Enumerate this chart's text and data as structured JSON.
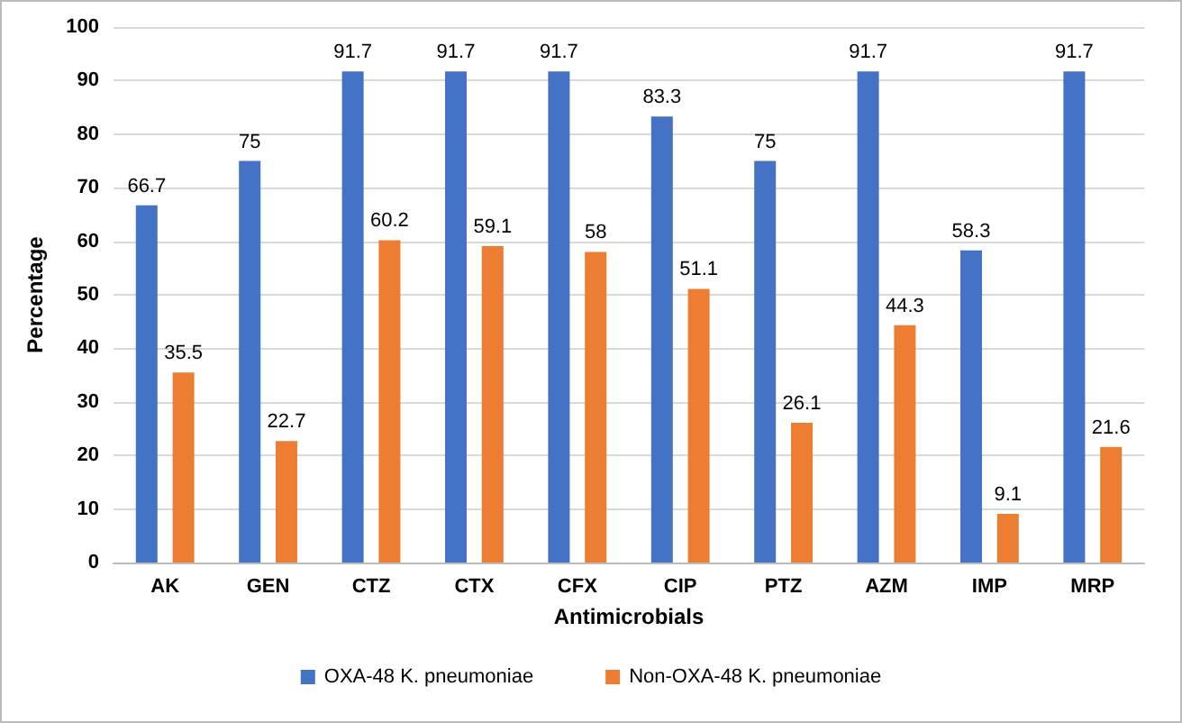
{
  "chart_data": {
    "type": "bar",
    "xlabel": "Antimicrobials",
    "ylabel": "Percentage",
    "categories": [
      "AK",
      "GEN",
      "CTZ",
      "CTX",
      "CFX",
      "CIP",
      "PTZ",
      "AZM",
      "IMP",
      "MRP"
    ],
    "series": [
      {
        "name": "OXA-48 K. pneumoniae",
        "color": "#4472c4",
        "values": [
          66.7,
          75,
          91.7,
          91.7,
          91.7,
          83.3,
          75,
          91.7,
          58.3,
          91.7
        ]
      },
      {
        "name": "Non-OXA-48 K. pneumoniae",
        "color": "#ed7d31",
        "values": [
          35.5,
          22.7,
          60.2,
          59.1,
          58,
          51.1,
          26.1,
          44.3,
          9.1,
          21.6
        ]
      }
    ],
    "ylim": [
      0,
      100
    ],
    "yticks": [
      0,
      10,
      20,
      30,
      40,
      50,
      60,
      70,
      80,
      90,
      100
    ],
    "grid": "y",
    "legend": "bottom",
    "data_labels": true
  }
}
